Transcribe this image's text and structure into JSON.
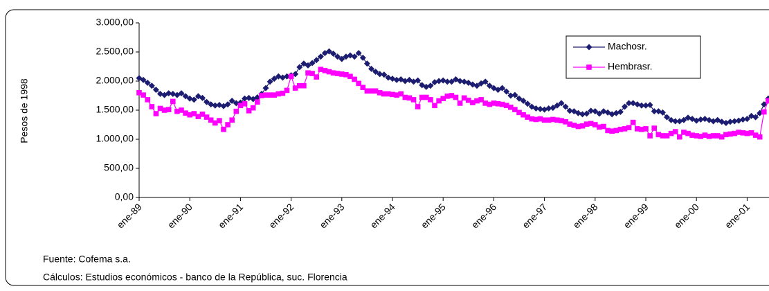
{
  "chart_data": {
    "type": "line",
    "y_axis_label": "Pesos de 1998",
    "categories": [
      "ene-89",
      null,
      null,
      null,
      null,
      null,
      null,
      null,
      null,
      null,
      null,
      null,
      "ene-90",
      null,
      null,
      null,
      null,
      null,
      null,
      null,
      null,
      null,
      null,
      null,
      "ene-91",
      null,
      null,
      null,
      null,
      null,
      null,
      null,
      null,
      null,
      null,
      null,
      "ene-92",
      null,
      null,
      null,
      null,
      null,
      null,
      null,
      null,
      null,
      null,
      null,
      "ene-93",
      null,
      null,
      null,
      null,
      null,
      null,
      null,
      null,
      null,
      null,
      null,
      "ene-94",
      null,
      null,
      null,
      null,
      null,
      null,
      null,
      null,
      null,
      null,
      null,
      "ene-95",
      null,
      null,
      null,
      null,
      null,
      null,
      null,
      null,
      null,
      null,
      null,
      "ene-96",
      null,
      null,
      null,
      null,
      null,
      null,
      null,
      null,
      null,
      null,
      null,
      "ene-97",
      null,
      null,
      null,
      null,
      null,
      null,
      null,
      null,
      null,
      null,
      null,
      "ene-98",
      null,
      null,
      null,
      null,
      null,
      null,
      null,
      null,
      null,
      null,
      null,
      "ene-99",
      null,
      null,
      null,
      null,
      null,
      null,
      null,
      null,
      null,
      null,
      null,
      "ene-00",
      null,
      null,
      null,
      null,
      null,
      null,
      null,
      null,
      null,
      null,
      null,
      "ene-01",
      null,
      null,
      null,
      null,
      null
    ],
    "series": [
      {
        "name": "Machosr.",
        "color": "#1c1c70",
        "marker": "diamond",
        "values": [
          2050,
          2020,
          1970,
          1920,
          1850,
          1780,
          1760,
          1790,
          1780,
          1760,
          1790,
          1740,
          1700,
          1680,
          1740,
          1710,
          1640,
          1600,
          1580,
          1590,
          1570,
          1600,
          1660,
          1620,
          1630,
          1700,
          1710,
          1690,
          1720,
          1780,
          1880,
          1990,
          2040,
          2080,
          2060,
          2080,
          2100,
          2120,
          2240,
          2300,
          2270,
          2310,
          2360,
          2420,
          2480,
          2510,
          2470,
          2420,
          2380,
          2420,
          2440,
          2420,
          2480,
          2400,
          2300,
          2210,
          2160,
          2120,
          2110,
          2060,
          2040,
          2020,
          2030,
          2000,
          2020,
          1990,
          2010,
          1930,
          1900,
          1920,
          1980,
          2000,
          2010,
          1990,
          1990,
          2030,
          2000,
          1990,
          1970,
          1940,
          1920,
          1960,
          1990,
          1920,
          1880,
          1850,
          1880,
          1820,
          1750,
          1760,
          1700,
          1660,
          1610,
          1560,
          1530,
          1520,
          1510,
          1530,
          1540,
          1580,
          1620,
          1560,
          1490,
          1480,
          1450,
          1430,
          1440,
          1490,
          1480,
          1440,
          1480,
          1460,
          1430,
          1450,
          1470,
          1560,
          1620,
          1620,
          1600,
          1580,
          1580,
          1590,
          1480,
          1480,
          1460,
          1380,
          1330,
          1310,
          1310,
          1330,
          1370,
          1350,
          1320,
          1340,
          1350,
          1330,
          1310,
          1330,
          1300,
          1280,
          1300,
          1310,
          1320,
          1340,
          1350,
          1400,
          1380,
          1450,
          1600,
          1700
        ]
      },
      {
        "name": "Hembrasr.",
        "color": "#ff00ff",
        "marker": "square",
        "values": [
          1800,
          1760,
          1680,
          1560,
          1440,
          1530,
          1500,
          1510,
          1650,
          1480,
          1500,
          1450,
          1420,
          1440,
          1390,
          1430,
          1380,
          1330,
          1280,
          1320,
          1170,
          1250,
          1330,
          1480,
          1580,
          1610,
          1490,
          1540,
          1640,
          1750,
          1760,
          1760,
          1760,
          1780,
          1790,
          1840,
          2080,
          1880,
          1920,
          1920,
          2140,
          2130,
          2070,
          2200,
          2180,
          2160,
          2140,
          2130,
          2120,
          2110,
          2080,
          2030,
          1960,
          1890,
          1830,
          1830,
          1830,
          1800,
          1780,
          1780,
          1770,
          1760,
          1780,
          1720,
          1710,
          1680,
          1560,
          1720,
          1720,
          1680,
          1580,
          1660,
          1700,
          1740,
          1750,
          1720,
          1620,
          1710,
          1670,
          1630,
          1660,
          1680,
          1620,
          1600,
          1620,
          1610,
          1600,
          1580,
          1550,
          1510,
          1460,
          1420,
          1380,
          1350,
          1340,
          1350,
          1330,
          1330,
          1340,
          1330,
          1320,
          1300,
          1260,
          1240,
          1220,
          1230,
          1260,
          1270,
          1250,
          1210,
          1220,
          1150,
          1140,
          1150,
          1170,
          1180,
          1200,
          1290,
          1180,
          1170,
          1180,
          1060,
          1190,
          1080,
          1060,
          1060,
          1100,
          1130,
          1040,
          1120,
          1100,
          1070,
          1060,
          1050,
          1070,
          1050,
          1060,
          1060,
          1040,
          1080,
          1090,
          1100,
          1120,
          1110,
          1100,
          1110,
          1070,
          1040,
          1470,
          1660
        ]
      }
    ],
    "ylim": [
      0,
      3000
    ],
    "yticks": [
      {
        "value": 0,
        "label": "0,00"
      },
      {
        "value": 500,
        "label": "500,00"
      },
      {
        "value": 1000,
        "label": "1.000,00"
      },
      {
        "value": 1500,
        "label": "1.500,00"
      },
      {
        "value": 2000,
        "label": "2.000,00"
      },
      {
        "value": 2500,
        "label": "2.500,00"
      },
      {
        "value": 3000,
        "label": "3.000,00"
      }
    ],
    "grid": false,
    "legend": "top-right",
    "notes": [
      "Fuente: Cofema s.a.",
      "Cálculos: Estudios económicos - banco de la República, suc. Florencia"
    ]
  }
}
